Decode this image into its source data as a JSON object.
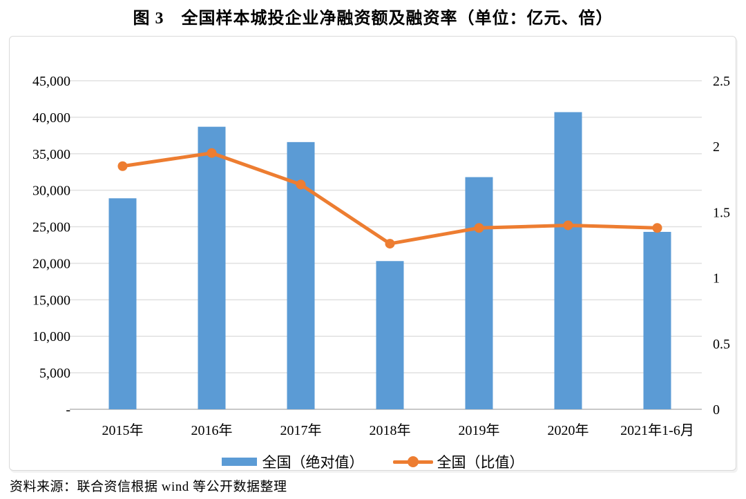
{
  "source": "资料来源：联合资信根据 wind 等公开数据整理",
  "chart_data": {
    "type": "combo",
    "title": "图 3　全国样本城投企业净融资额及融资率（单位：亿元、倍）",
    "units": "亿元、倍",
    "categories": [
      "2015年",
      "2016年",
      "2017年",
      "2018年",
      "2019年",
      "2020年",
      "2021年1-6月"
    ],
    "series": [
      {
        "name": "全国（绝对值）",
        "kind": "bar",
        "axis": "left",
        "color": "#5B9BD5",
        "values": [
          28900,
          38700,
          36600,
          20300,
          31800,
          40700,
          24300
        ]
      },
      {
        "name": "全国（比值）",
        "kind": "line",
        "axis": "right",
        "color": "#ED7D31",
        "values": [
          1.85,
          1.95,
          1.71,
          1.26,
          1.38,
          1.4,
          1.38
        ]
      }
    ],
    "left_axis": {
      "min": 0,
      "max": 45000,
      "step": 5000,
      "tick_labels": [
        "45,000",
        "40,000",
        "35,000",
        "30,000",
        "25,000",
        "20,000",
        "15,000",
        "10,000",
        "5,000",
        "-"
      ]
    },
    "right_axis": {
      "min": 0,
      "max": 2.5,
      "step": 0.5,
      "tick_labels": [
        "2.5",
        "2",
        "1.5",
        "1",
        "0.5",
        "0"
      ]
    },
    "grid": true,
    "legend_position": "bottom",
    "colors": {
      "bar": "#5B9BD5",
      "line": "#ED7D31",
      "gridline": "#E0E0E0",
      "baseline": "#C8C8C8",
      "panel_border": "#D9D9D9",
      "text": "#000000"
    }
  }
}
